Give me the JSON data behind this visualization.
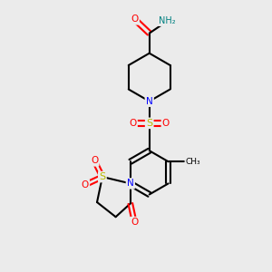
{
  "bg_color": "#ebebeb",
  "atom_colors": {
    "C": "#000000",
    "N": "#0000ff",
    "O": "#ff0000",
    "S": "#b8b800",
    "H": "#008080"
  },
  "bond_color": "#000000",
  "bond_width": 1.5,
  "figsize": [
    3.0,
    3.0
  ],
  "dpi": 100
}
